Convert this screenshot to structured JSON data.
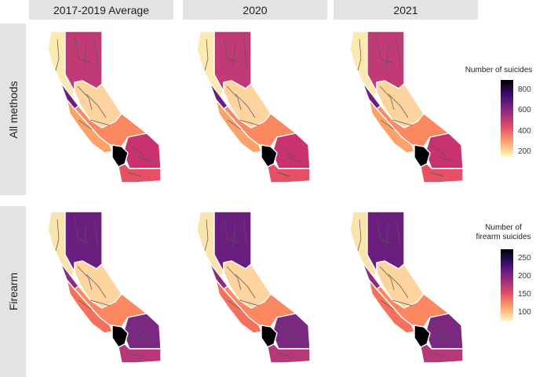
{
  "columns": [
    "2017-2019 Average",
    "2020",
    "2021"
  ],
  "rows": [
    {
      "label": "All methods",
      "legend_title": "Number of suicides",
      "legend_ticks": [
        "800",
        "600",
        "400",
        "200"
      ],
      "colors": {
        "north": "#c03a76",
        "coast": "#fbe9b0",
        "sierra": "#fdd49e",
        "bay": "#6b1d81",
        "central": "#fb8861",
        "inland": "#c8336f",
        "coastal_south": "#fca16a",
        "la": "#000004",
        "south": "#e55064"
      }
    },
    {
      "label": "Firearm",
      "legend_title": "Number of\nfirearm suicides",
      "legend_ticks": [
        "250",
        "200",
        "150",
        "100"
      ],
      "colors": {
        "north": "#6a1f7f",
        "coast": "#fbe3ad",
        "sierra": "#fdd49e",
        "bay": "#8e2a80",
        "central": "#fb8861",
        "inland": "#7a2880",
        "coastal_south": "#f7705c",
        "la": "#000004",
        "south": "#b73779"
      }
    }
  ],
  "color_scale": [
    "#000004",
    "#3b0f70",
    "#8c2981",
    "#de4968",
    "#fe9f6d",
    "#fcfdbf"
  ]
}
